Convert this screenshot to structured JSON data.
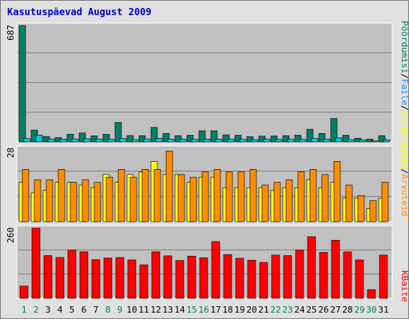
{
  "title": "Kasutuspäevad August 2009",
  "chart_data": [
    {
      "type": "bar",
      "panel": "top",
      "scale_label": "687",
      "categories": [
        "1",
        "2",
        "3",
        "4",
        "5",
        "6",
        "7",
        "8",
        "9",
        "10",
        "11",
        "12",
        "13",
        "14",
        "15",
        "16",
        "17",
        "18",
        "19",
        "20",
        "21",
        "22",
        "23",
        "24",
        "25",
        "26",
        "27",
        "28",
        "29",
        "30",
        "31"
      ],
      "series": [
        {
          "name": "Pöördumisi",
          "color": "#008066",
          "values": [
            687,
            70,
            32,
            26,
            45,
            53,
            36,
            45,
            115,
            38,
            37,
            86,
            50,
            37,
            40,
            66,
            66,
            42,
            40,
            31,
            34,
            35,
            37,
            40,
            75,
            50,
            138,
            40,
            22,
            17,
            37
          ]
        },
        {
          "name": "Faile",
          "color": "#00c8e0",
          "values": [
            20,
            41,
            18,
            17,
            18,
            19,
            17,
            16,
            21,
            14,
            18,
            21,
            17,
            16,
            15,
            17,
            17,
            16,
            15,
            14,
            16,
            15,
            16,
            15,
            22,
            17,
            24,
            14,
            12,
            6,
            12
          ]
        }
      ],
      "ylim": [
        0,
        687
      ]
    },
    {
      "type": "bar",
      "panel": "middle",
      "scale_label": "28",
      "categories": [
        "1",
        "2",
        "3",
        "4",
        "5",
        "6",
        "7",
        "8",
        "9",
        "10",
        "11",
        "12",
        "13",
        "14",
        "15",
        "16",
        "17",
        "18",
        "19",
        "20",
        "21",
        "22",
        "23",
        "24",
        "25",
        "26",
        "27",
        "28",
        "29",
        "30",
        "31"
      ],
      "series": [
        {
          "name": "Külastajaid",
          "color": "#ffff00",
          "values": [
            15,
            11,
            12,
            15,
            15,
            14,
            13,
            18,
            15,
            18,
            19,
            23,
            18,
            18,
            15,
            17,
            17,
            13,
            13,
            13,
            13,
            12,
            13,
            13,
            16,
            13,
            15,
            9,
            9,
            5,
            9
          ]
        },
        {
          "name": "Arvuteid",
          "color": "#ff8c00",
          "values": [
            20,
            16,
            16,
            20,
            15,
            16,
            15,
            17,
            20,
            17,
            20,
            20,
            27,
            18,
            17,
            19,
            20,
            19,
            19,
            20,
            14,
            15,
            16,
            19,
            20,
            18,
            23,
            14,
            10,
            8,
            15
          ]
        }
      ],
      "ylim": [
        0,
        28
      ]
    },
    {
      "type": "bar",
      "panel": "bottom",
      "scale_label": "260",
      "categories": [
        "1",
        "2",
        "3",
        "4",
        "5",
        "6",
        "7",
        "8",
        "9",
        "10",
        "11",
        "12",
        "13",
        "14",
        "15",
        "16",
        "17",
        "18",
        "19",
        "20",
        "21",
        "22",
        "23",
        "24",
        "25",
        "26",
        "27",
        "28",
        "29",
        "30",
        "31"
      ],
      "series": [
        {
          "name": "KBaite",
          "color": "#ff0000",
          "values": [
            45,
            260,
            158,
            151,
            178,
            172,
            143,
            149,
            151,
            142,
            124,
            172,
            157,
            140,
            156,
            150,
            210,
            162,
            148,
            141,
            133,
            160,
            158,
            178,
            228,
            170,
            215,
            172,
            142,
            32,
            160
          ]
        }
      ],
      "ylim": [
        0,
        260
      ]
    }
  ],
  "legend": {
    "upper": [
      {
        "label": "Pöördumisi",
        "color": "#008066"
      },
      {
        "label": "/",
        "color": "#000000"
      },
      {
        "label": "Faile",
        "color": "#1e8cff"
      },
      {
        "label": "/",
        "color": "#000000"
      },
      {
        "label": "Külastajaid",
        "color": "#ffff00"
      },
      {
        "label": "/",
        "color": "#000000"
      },
      {
        "label": "Arvuteid",
        "color": "#ff8c00"
      }
    ],
    "lower": {
      "label": "KBaite",
      "color": "#ff0000"
    }
  },
  "x_labels": {
    "labels": [
      "1",
      "2",
      "3",
      "4",
      "5",
      "6",
      "7",
      "8",
      "9",
      "10",
      "11",
      "12",
      "13",
      "14",
      "15",
      "16",
      "17",
      "18",
      "19",
      "20",
      "21",
      "22",
      "23",
      "24",
      "25",
      "26",
      "27",
      "28",
      "29",
      "30",
      "31"
    ],
    "weekend_days": [
      "1",
      "2",
      "8",
      "9",
      "15",
      "16",
      "22",
      "23",
      "29",
      "30"
    ],
    "weekend_color": "#00805a",
    "weekday_color": "#000000"
  },
  "colors": {
    "panel_bg": "#c0c0c0",
    "gridline": "#808080",
    "frame_bg": "#e0e0e0"
  }
}
